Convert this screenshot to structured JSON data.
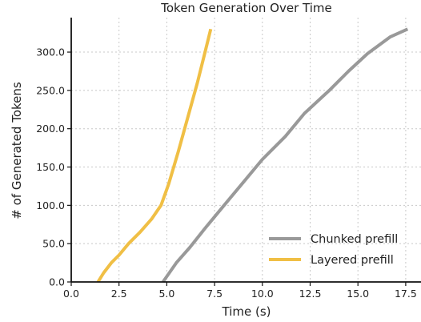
{
  "chart_data": {
    "type": "line",
    "title": "Token Generation Over Time",
    "xlabel": "Time (s)",
    "ylabel": "# of Generated Tokens",
    "xlim": [
      0,
      18.3
    ],
    "ylim": [
      0,
      345
    ],
    "xticks": [
      0,
      2.5,
      5,
      7.5,
      10,
      12.5,
      15,
      17.5
    ],
    "xtick_labels": [
      "0.0",
      "2.5",
      "5.0",
      "7.5",
      "10.0",
      "12.5",
      "15.0",
      "17.5"
    ],
    "yticks": [
      0,
      50,
      100,
      150,
      200,
      250,
      300
    ],
    "ytick_labels": [
      "0.0",
      "50.0",
      "100.0",
      "150.0",
      "200.0",
      "250.0",
      "300.0"
    ],
    "grid": true,
    "legend_position": "lower-right",
    "series": [
      {
        "name": "Chunked prefill",
        "color": "#999999",
        "x": [
          4.8,
          5.5,
          6.2,
          7.0,
          8.0,
          9.0,
          10.0,
          11.2,
          12.2,
          13.5,
          14.5,
          15.5,
          16.7,
          17.6
        ],
        "y": [
          0,
          25,
          45,
          70,
          100,
          130,
          160,
          190,
          220,
          250,
          275,
          298,
          320,
          330
        ]
      },
      {
        "name": "Layered prefill",
        "color": "#f0bf45",
        "x": [
          1.4,
          1.7,
          2.1,
          2.5,
          3.0,
          3.6,
          4.2,
          4.7,
          5.1,
          5.6,
          6.1,
          6.6,
          7.0,
          7.3
        ],
        "y": [
          0,
          12,
          25,
          35,
          50,
          65,
          82,
          100,
          128,
          170,
          215,
          260,
          300,
          330
        ]
      }
    ]
  }
}
